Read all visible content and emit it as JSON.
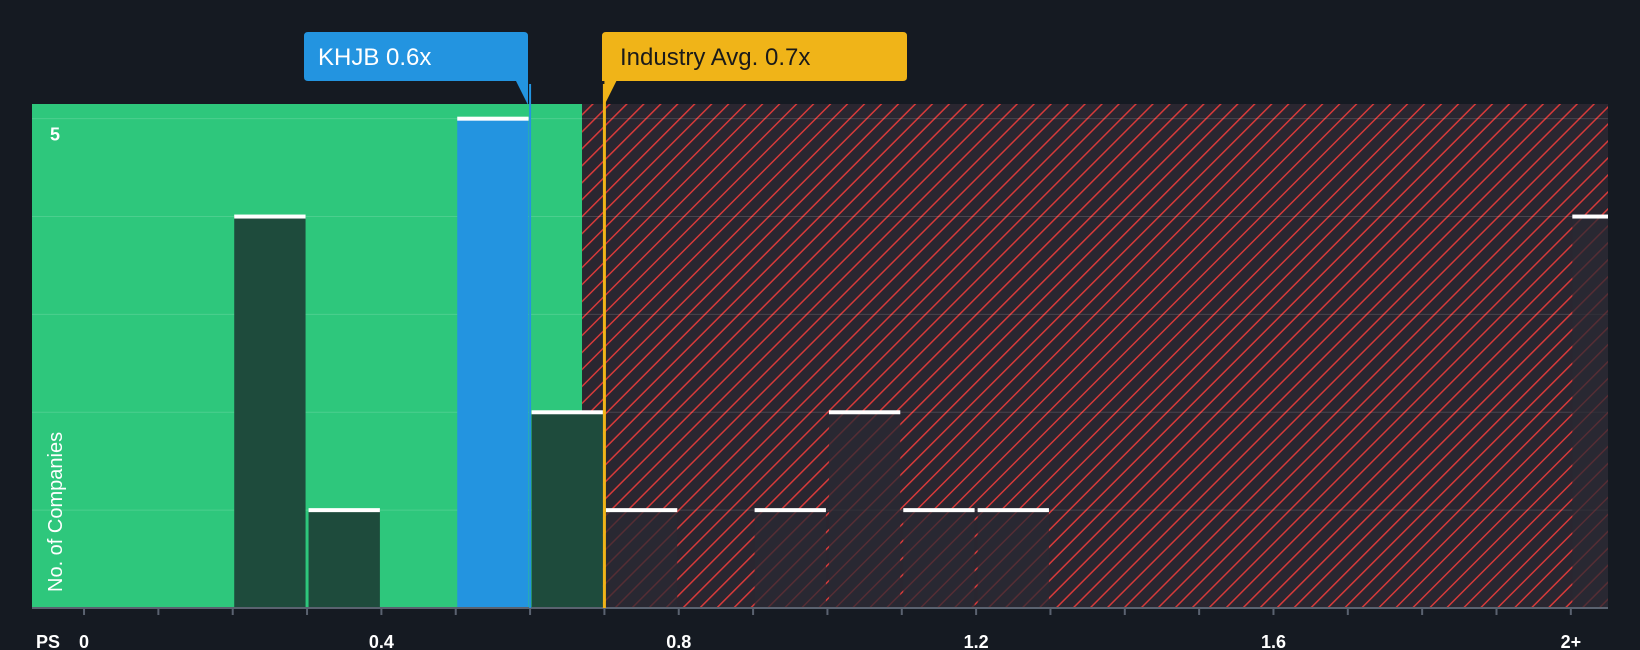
{
  "chart_data": {
    "type": "bar",
    "title": "",
    "xlabel": "PS",
    "ylabel": "No. of Companies",
    "x_ticks": [
      {
        "value": 0,
        "label": "0"
      },
      {
        "value": 0.4,
        "label": "0.4"
      },
      {
        "value": 0.8,
        "label": "0.8"
      },
      {
        "value": 1.2,
        "label": "1.2"
      },
      {
        "value": 1.6,
        "label": "1.6"
      },
      {
        "value": 2.0,
        "label": "2+"
      }
    ],
    "y_ticks": [
      {
        "value": 5,
        "label": "5"
      }
    ],
    "xlim": [
      -0.07,
      2.05
    ],
    "ylim": [
      0,
      5.15
    ],
    "bin_width": 0.1,
    "bins": [
      {
        "start": 0.2,
        "count": 4
      },
      {
        "start": 0.3,
        "count": 1
      },
      {
        "start": 0.5,
        "count": 5,
        "highlight": true
      },
      {
        "start": 0.6,
        "count": 2
      },
      {
        "start": 0.7,
        "count": 1
      },
      {
        "start": 0.9,
        "count": 1
      },
      {
        "start": 1.0,
        "count": 2
      },
      {
        "start": 1.1,
        "count": 1
      },
      {
        "start": 1.2,
        "count": 1
      },
      {
        "start": 2.0,
        "count": 4
      }
    ],
    "fair_zone_end": 0.67,
    "company": {
      "label": "KHJB 0.6x",
      "value": 0.6
    },
    "industry": {
      "label": "Industry Avg. 0.7x",
      "value": 0.7
    }
  },
  "colors": {
    "background": "#151a22",
    "fair_zone": "#2ec77c",
    "overvalued_bg": "#2a2630",
    "overvalued_hatch": "#d63a3a",
    "bar_in_fair": "#1e4b3c",
    "bar_in_over": "#2a2a33",
    "highlight_bar": "#2394e0",
    "bar_cap": "#ffffff",
    "company_callout": "#2394e0",
    "industry_callout": "#f0b418",
    "axis_text": "#ffffff",
    "industry_text": "#1a1a1a"
  }
}
